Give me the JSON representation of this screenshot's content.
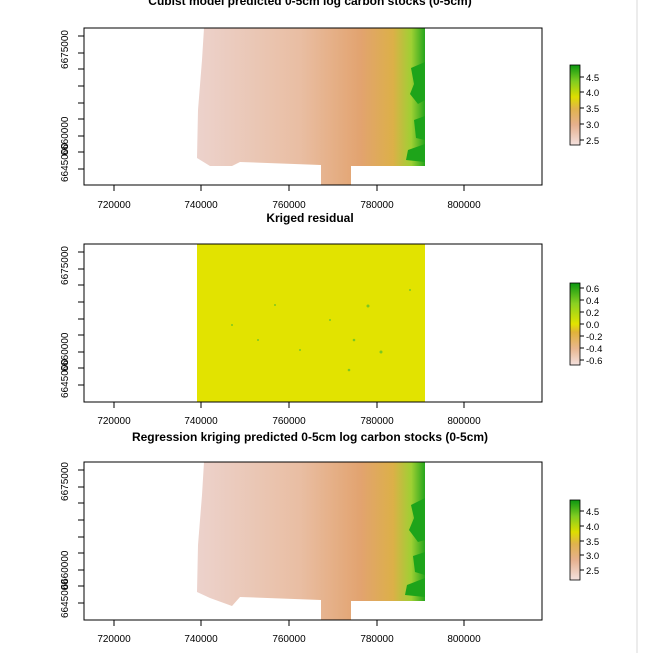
{
  "panels": [
    {
      "title": "Cubist model predicted 0-5cm log carbon stocks (0-5cm)",
      "x_ticks": [
        "720000",
        "740000",
        "760000",
        "780000",
        "800000"
      ],
      "y_ticks": [
        "6645000",
        "6660000",
        "6675000"
      ],
      "legend_ticks": [
        "2.5",
        "3.0",
        "3.5",
        "4.0",
        "4.5"
      ],
      "colors": {
        "low": "#f2d8d4",
        "mid": "#e6a97c",
        "mid2": "#dcc14a",
        "high": "#0fa010"
      }
    },
    {
      "title": "Kriged residual",
      "x_ticks": [
        "720000",
        "740000",
        "760000",
        "780000",
        "800000"
      ],
      "y_ticks": [
        "6645000",
        "6660000",
        "6675000"
      ],
      "legend_ticks": [
        "-0.6",
        "-0.4",
        "-0.2",
        "0.0",
        "0.2",
        "0.4",
        "0.6"
      ],
      "colors": {
        "field": "#e2e300",
        "low": "#f2d8d4",
        "high": "#0fa010"
      }
    },
    {
      "title": "Regression kriging predicted 0-5cm log carbon stocks (0-5cm)",
      "x_ticks": [
        "720000",
        "740000",
        "760000",
        "780000",
        "800000"
      ],
      "y_ticks": [
        "6645000",
        "6660000",
        "6675000"
      ],
      "legend_ticks": [
        "2.5",
        "3.0",
        "3.5",
        "4.0",
        "4.5"
      ],
      "colors": {
        "low": "#f2d8d4",
        "mid": "#e6a97c",
        "mid2": "#dcc14a",
        "high": "#0fa010"
      }
    }
  ],
  "chart_data": [
    {
      "type": "heatmap",
      "title": "Cubist model predicted 0-5cm log carbon stocks (0-5cm)",
      "x_axis_ticks": [
        720000,
        740000,
        760000,
        780000,
        800000
      ],
      "y_axis_ticks": [
        6645000,
        6660000,
        6675000
      ],
      "xlim": [
        711000,
        817000
      ],
      "ylim": [
        6643000,
        6682000
      ],
      "value_range": [
        2.3,
        4.8
      ],
      "legend_ticks": [
        2.5,
        3.0,
        3.5,
        4.0,
        4.5
      ],
      "legend": "right",
      "grid": false
    },
    {
      "type": "heatmap",
      "title": "Kriged residual",
      "x_axis_ticks": [
        720000,
        740000,
        760000,
        780000,
        800000
      ],
      "y_axis_ticks": [
        6645000,
        6660000,
        6675000
      ],
      "xlim": [
        711000,
        817000
      ],
      "ylim": [
        6643000,
        6682000
      ],
      "value_range": [
        -0.65,
        0.65
      ],
      "legend_ticks": [
        -0.6,
        -0.4,
        -0.2,
        0.0,
        0.2,
        0.4,
        0.6
      ],
      "legend": "right",
      "grid": false
    },
    {
      "type": "heatmap",
      "title": "Regression kriging predicted 0-5cm log carbon stocks (0-5cm)",
      "x_axis_ticks": [
        720000,
        740000,
        760000,
        780000,
        800000
      ],
      "y_axis_ticks": [
        6645000,
        6660000,
        6675000
      ],
      "xlim": [
        711000,
        817000
      ],
      "ylim": [
        6643000,
        6682000
      ],
      "value_range": [
        2.3,
        4.8
      ],
      "legend_ticks": [
        2.5,
        3.0,
        3.5,
        4.0,
        4.5
      ],
      "legend": "right",
      "grid": false
    }
  ]
}
